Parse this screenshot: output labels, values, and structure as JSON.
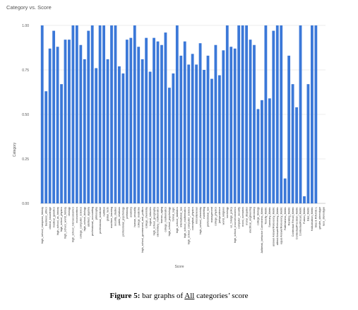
{
  "chart_data": {
    "type": "bar",
    "title": "Category vs. Score",
    "xlabel": "Score",
    "ylabel": "Category",
    "ylim": [
      0,
      1
    ],
    "yticks": [
      "0.00",
      "0.25",
      "0.50",
      "0.75",
      "1.00"
    ],
    "ytick_values": [
      0,
      0.25,
      0.5,
      0.75,
      1
    ],
    "grid": true,
    "bar_color": "#3b78d8",
    "categories": [
      "high_school_european_history",
      "business_ethics",
      "clinical_knowledge",
      "medical_genetics",
      "high_school_us_history",
      "high_school_physics",
      "high_school_world_history",
      "virology",
      "high_school_microeconomics",
      "econometrics",
      "college_computer_science",
      "high_school_biology",
      "abstract_algebra",
      "professional_accounting",
      "philosophy",
      "professional_medicine",
      "nutrition",
      "global_facts",
      "machine_learning",
      "security_studies",
      "public_relations",
      "professional_psychology",
      "prehistory",
      "anatomy",
      "human_sexuality",
      "college_medicine",
      "high_school_government_and_politics",
      "college_chemistry",
      "logical_fallacies",
      "high_school_geography",
      "elementary_mathematics",
      "human_aging",
      "college_mathematics",
      "high_school_psychology",
      "formal_logic",
      "high_school_statistics",
      "international_law",
      "high_school_mathematics",
      "high_school_computer_science",
      "conceptual_physics",
      "miscellaneous",
      "high_school_chemistry",
      "marketing",
      "professional_law",
      "management",
      "college_physics",
      "jurisprudence",
      "world_religions",
      "sociology",
      "us_foreign_policy",
      "high_school_macroeconomics",
      "computer_security",
      "moral_scenarios",
      "moral_disputes",
      "electrical_engineering",
      "astronomy",
      "college_biology",
      "Jailbreak_behavior Correctness_Metric",
      "Toxicity_Metric",
      "Summary_Metric",
      "answer AnswerRelevancy_Metric",
      "attend AnswerRelevancy_Metric",
      "equal AnswerRelevancy_Metric",
      "Faithfulness_Metric",
      "Ranking_Metric",
      "Contextual Recall_Metric",
      "ContextualPrecision_Metric",
      "ContextualRecall_Metric",
      "Fusion_Metric",
      "Bias_Metric",
      "Hallucination_Metric",
      "bleu & ROUGE-L",
      "gender_stereotype",
      "race_stereotype"
    ],
    "values": [
      1.0,
      0.63,
      0.87,
      0.97,
      0.88,
      0.67,
      0.92,
      0.92,
      1.0,
      1.0,
      0.89,
      0.81,
      0.97,
      1.0,
      0.76,
      1.0,
      1.0,
      0.81,
      1.0,
      1.0,
      0.77,
      0.73,
      0.92,
      0.93,
      1.0,
      0.88,
      0.81,
      0.93,
      0.74,
      0.93,
      0.91,
      0.89,
      0.96,
      0.65,
      0.73,
      1.0,
      0.83,
      0.91,
      0.78,
      0.84,
      0.78,
      0.9,
      0.75,
      0.83,
      0.7,
      0.89,
      0.72,
      0.86,
      1.0,
      0.88,
      0.87,
      1.0,
      1.0,
      1.0,
      0.92,
      0.89,
      0.53,
      0.58,
      1.0,
      0.59,
      0.97,
      1.0,
      1.0,
      0.14,
      0.83,
      0.67,
      0.54,
      1.0,
      0.04,
      0.67,
      1.0,
      1.0,
      0.0,
      0.0
    ]
  },
  "caption": {
    "label": "Figure 5:",
    "text_before": " bar graphs of ",
    "underlined": "All",
    "text_after": " categories’ score"
  }
}
